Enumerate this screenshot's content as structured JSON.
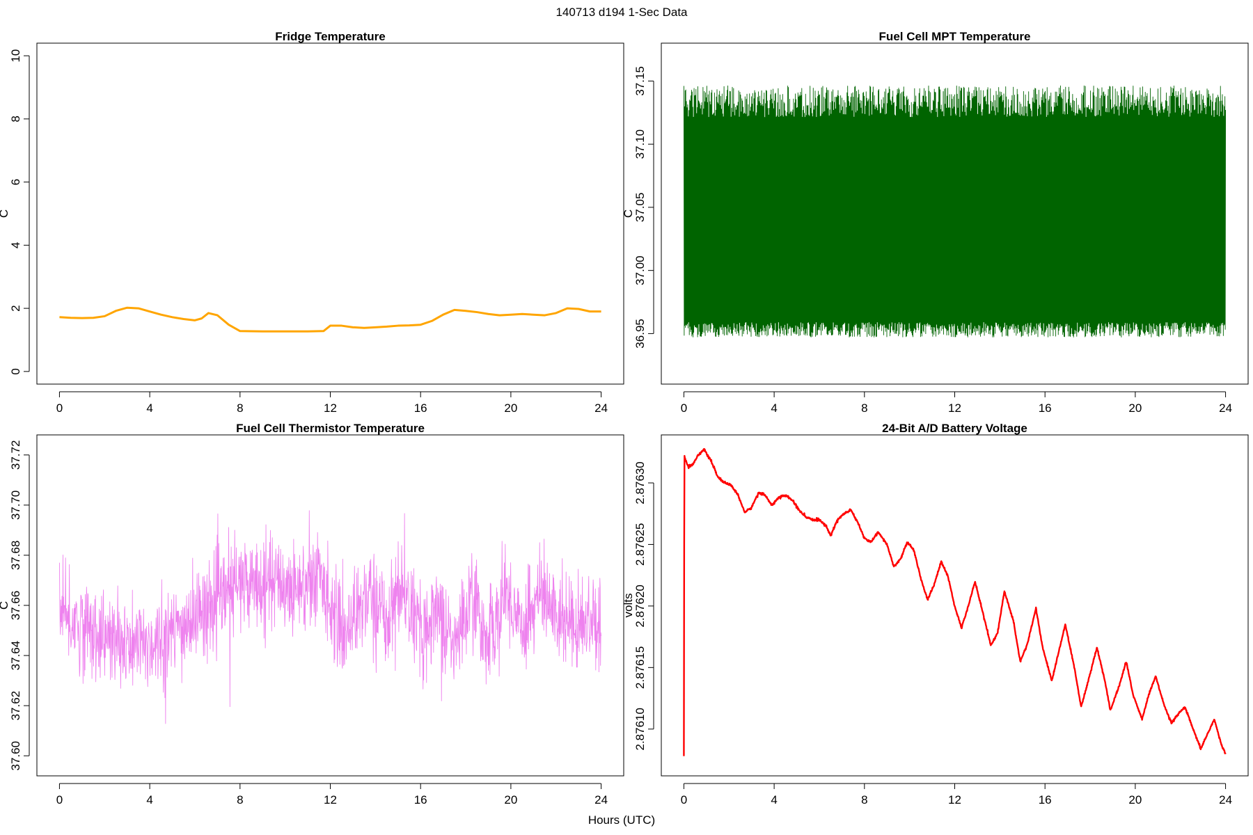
{
  "figure": {
    "title": "140713   d194   1-Sec Data",
    "shared_xlabel": "Hours (UTC)"
  },
  "chart_data": [
    {
      "type": "line",
      "title": "Fridge Temperature",
      "xlabel": "",
      "ylabel": "C",
      "xlim": [
        -1.0,
        25.0
      ],
      "ylim": [
        -0.4,
        10.4
      ],
      "xticks": [
        0,
        4,
        8,
        12,
        16,
        20,
        24
      ],
      "xtick_labels": [
        "0",
        "4",
        "8",
        "12",
        "16",
        "20",
        "24"
      ],
      "yticks": [
        0,
        2,
        4,
        6,
        8,
        10
      ],
      "ytick_labels": [
        "0",
        "2",
        "4",
        "6",
        "8",
        "10"
      ],
      "color": "#FFA500",
      "noise": 0.0,
      "series": [
        {
          "x": [
            0,
            0.5,
            1,
            1.5,
            2,
            2.5,
            3,
            3.5,
            4,
            4.5,
            5,
            5.5,
            6,
            6.3,
            6.6,
            7,
            7.5,
            8,
            9,
            10,
            11,
            11.7,
            12,
            12.5,
            13,
            13.5,
            14,
            14.5,
            15,
            15.5,
            16,
            16.5,
            17,
            17.5,
            18,
            18.5,
            19,
            19.5,
            20,
            20.5,
            21,
            21.5,
            22,
            22.5,
            23,
            23.5,
            24
          ],
          "y": [
            1.72,
            1.7,
            1.69,
            1.7,
            1.75,
            1.92,
            2.02,
            2.0,
            1.9,
            1.8,
            1.72,
            1.66,
            1.62,
            1.68,
            1.85,
            1.78,
            1.48,
            1.28,
            1.27,
            1.27,
            1.27,
            1.28,
            1.45,
            1.45,
            1.4,
            1.38,
            1.4,
            1.42,
            1.45,
            1.46,
            1.48,
            1.6,
            1.8,
            1.95,
            1.92,
            1.88,
            1.82,
            1.78,
            1.8,
            1.82,
            1.8,
            1.78,
            1.85,
            2.0,
            1.98,
            1.9,
            1.9
          ]
        }
      ]
    },
    {
      "type": "line",
      "title": "Fuel Cell MPT Temperature",
      "xlabel": "",
      "ylabel": "C",
      "xlim": [
        -1.0,
        25.0
      ],
      "ylim": [
        36.91,
        37.18
      ],
      "xticks": [
        0,
        4,
        8,
        12,
        16,
        20,
        24
      ],
      "xtick_labels": [
        "0",
        "4",
        "8",
        "12",
        "16",
        "20",
        "24"
      ],
      "yticks": [
        36.95,
        37.0,
        37.05,
        37.1,
        37.15
      ],
      "ytick_labels": [
        "36.95",
        "37.00",
        "37.05",
        "37.10",
        "37.15"
      ],
      "color": "#006400",
      "noise": 0.032,
      "series": [
        {
          "x": [
            0,
            4,
            8,
            12,
            16,
            20,
            24
          ],
          "y": [
            37.022,
            37.022,
            37.022,
            37.022,
            37.022,
            37.022,
            37.022
          ],
          "band_low": [
            36.955,
            36.955,
            36.955,
            36.955,
            36.955,
            36.955,
            36.955
          ],
          "band_high": [
            37.13,
            37.13,
            37.13,
            37.13,
            37.13,
            37.13,
            37.13
          ]
        }
      ]
    },
    {
      "type": "line",
      "title": "Fuel Cell Thermistor Temperature",
      "xlabel": "",
      "ylabel": "C",
      "xlim": [
        -1.0,
        25.0
      ],
      "ylim": [
        37.592,
        37.728
      ],
      "xticks": [
        0,
        4,
        8,
        12,
        16,
        20,
        24
      ],
      "xtick_labels": [
        "0",
        "4",
        "8",
        "12",
        "16",
        "20",
        "24"
      ],
      "yticks": [
        37.6,
        37.62,
        37.64,
        37.66,
        37.68,
        37.7,
        37.72
      ],
      "ytick_labels": [
        "37.60",
        "37.62",
        "37.64",
        "37.66",
        "37.68",
        "37.70",
        "37.72"
      ],
      "color": "#EE82EE",
      "noise": 0.02,
      "series": [
        {
          "x": [
            0,
            1,
            2,
            3,
            4,
            5,
            6,
            7,
            8,
            9,
            10,
            11,
            11.5,
            12,
            12.5,
            13,
            13.7,
            14.5,
            15.2,
            16,
            16.7,
            17.5,
            18.2,
            19,
            19.8,
            20.5,
            21.3,
            22,
            23,
            24
          ],
          "y": [
            37.655,
            37.652,
            37.647,
            37.643,
            37.645,
            37.648,
            37.655,
            37.662,
            37.668,
            37.67,
            37.668,
            37.668,
            37.672,
            37.662,
            37.648,
            37.655,
            37.665,
            37.655,
            37.668,
            37.648,
            37.66,
            37.642,
            37.664,
            37.646,
            37.665,
            37.652,
            37.664,
            37.656,
            37.654,
            37.655
          ]
        }
      ]
    },
    {
      "type": "line",
      "title": "24-Bit A/D Battery Voltage",
      "xlabel": "",
      "ylabel": "volts",
      "xlim": [
        -1.0,
        25.0
      ],
      "ylim": [
        2.876062,
        2.876339
      ],
      "xticks": [
        0,
        4,
        8,
        12,
        16,
        20,
        24
      ],
      "xtick_labels": [
        "0",
        "4",
        "8",
        "12",
        "16",
        "20",
        "24"
      ],
      "yticks": [
        2.8761,
        2.87615,
        2.8762,
        2.87625,
        2.8763
      ],
      "ytick_labels": [
        "2.87610",
        "2.87615",
        "2.87620",
        "2.87625",
        "2.87630"
      ],
      "color": "#FF0000",
      "noise": 1e-06,
      "series": [
        {
          "x": [
            0,
            0.02,
            0.05,
            0.2,
            0.4,
            0.6,
            0.9,
            1.2,
            1.5,
            1.8,
            2.1,
            2.4,
            2.7,
            3.0,
            3.3,
            3.6,
            3.9,
            4.2,
            4.5,
            4.8,
            5.1,
            5.4,
            5.7,
            6.0,
            6.3,
            6.5,
            6.8,
            7.1,
            7.4,
            7.7,
            8.0,
            8.3,
            8.6,
            9.0,
            9.3,
            9.6,
            9.9,
            10.2,
            10.5,
            10.8,
            11.1,
            11.4,
            11.7,
            12.0,
            12.3,
            12.6,
            12.9,
            13.2,
            13.6,
            13.9,
            14.2,
            14.6,
            14.9,
            15.2,
            15.6,
            15.9,
            16.3,
            16.6,
            16.9,
            17.3,
            17.6,
            17.9,
            18.3,
            18.6,
            18.9,
            19.3,
            19.6,
            19.9,
            20.3,
            20.6,
            20.9,
            21.3,
            21.6,
            21.9,
            22.2,
            22.6,
            22.9,
            23.2,
            23.5,
            23.8,
            24.0
          ],
          "y": [
            2.876078,
            2.876322,
            2.87632,
            2.876313,
            2.876315,
            2.876322,
            2.876327,
            2.876318,
            2.876305,
            2.8763,
            2.876298,
            2.87629,
            2.876276,
            2.87628,
            2.876292,
            2.87629,
            2.876282,
            2.876288,
            2.87629,
            2.876286,
            2.876278,
            2.876272,
            2.87627,
            2.87627,
            2.876265,
            2.876257,
            2.87627,
            2.876275,
            2.876278,
            2.876268,
            2.876255,
            2.876252,
            2.87626,
            2.87625,
            2.876232,
            2.876238,
            2.876252,
            2.876245,
            2.876222,
            2.876205,
            2.876218,
            2.876236,
            2.876224,
            2.8762,
            2.876182,
            2.8762,
            2.87622,
            2.876198,
            2.876168,
            2.876178,
            2.876212,
            2.876188,
            2.876155,
            2.876168,
            2.876198,
            2.876166,
            2.876139,
            2.876162,
            2.876185,
            2.87615,
            2.876118,
            2.876138,
            2.876166,
            2.876144,
            2.876115,
            2.876136,
            2.876155,
            2.876128,
            2.876108,
            2.876128,
            2.876143,
            2.876118,
            2.876105,
            2.876112,
            2.876118,
            2.876098,
            2.876084,
            2.876096,
            2.876108,
            2.876088,
            2.87608
          ]
        }
      ]
    }
  ]
}
